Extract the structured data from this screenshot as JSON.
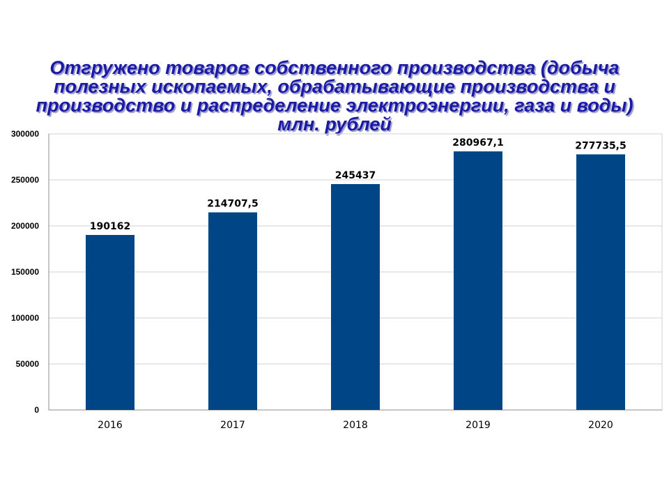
{
  "chart_data": {
    "type": "bar",
    "title_lines": [
      "Отгружено товаров собственного производства (добыча",
      "полезных ископаемых, обрабатывающие производства и",
      "производство и распределение электроэнергии, газа и воды)",
      "млн. рублей"
    ],
    "categories": [
      "2016",
      "2017",
      "2018",
      "2019",
      "2020"
    ],
    "values": [
      190162,
      214707.5,
      245437,
      280967.1,
      277735.5
    ],
    "data_labels": [
      "190162",
      "214707,5",
      "245437",
      "280967,1",
      "277735,5"
    ],
    "ylim": [
      0,
      300000
    ],
    "yticks": [
      "0",
      "50000",
      "100000",
      "150000",
      "200000",
      "250000",
      "300000"
    ],
    "grid": true,
    "bar_color": "#004586",
    "title_color": "#1a1aa6"
  }
}
